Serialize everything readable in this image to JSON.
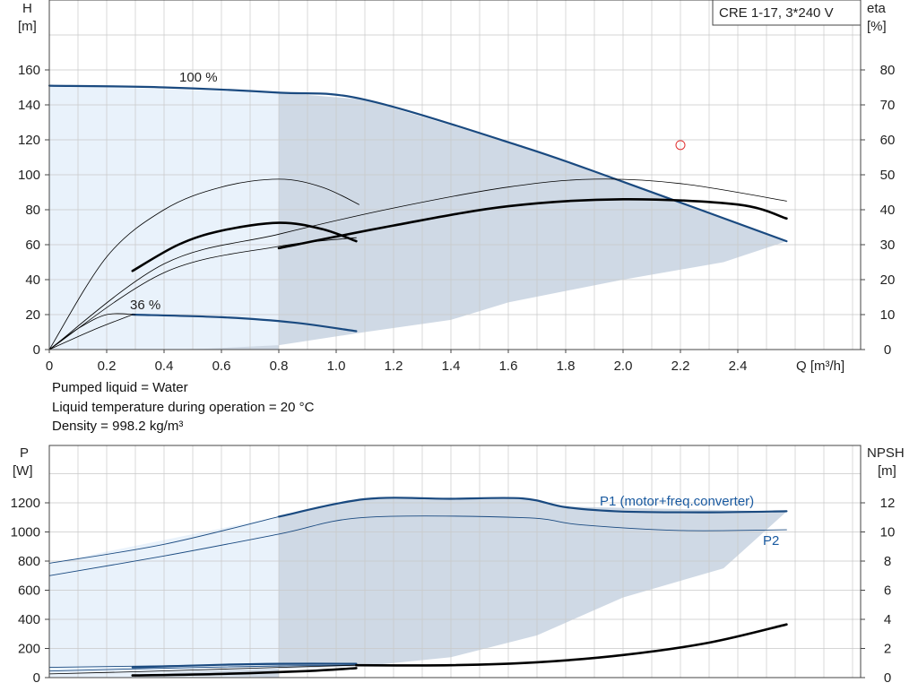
{
  "notes": [
    "Pumped liquid = Water",
    "Liquid temperature during operation = 20 °C",
    "Density = 998.2 kg/m³"
  ],
  "colors": {
    "curve_blue": "#1a4a80",
    "curve_black": "#000000",
    "range_light": "#e9f2fb",
    "range_dark": "#cfd9e5",
    "grid": "#c8c8c8",
    "duty_point": "#e03030",
    "label_blue": "#1a5aa0"
  },
  "chart_data": [
    {
      "type": "line",
      "title": "CRE 1-17, 3*240 V",
      "xlabel": "Q [m³/h]",
      "ylabel_left": [
        "H",
        "[m]"
      ],
      "ylabel_right": [
        "eta",
        "[%]"
      ],
      "xlim": [
        0,
        2.8
      ],
      "ylim_left": [
        0,
        180
      ],
      "ylim_right": [
        0,
        90
      ],
      "x_ticks": [
        "0",
        "0.2",
        "0.4",
        "0.6",
        "0.8",
        "1.0",
        "1.2",
        "1.4",
        "1.6",
        "1.8",
        "2.0",
        "2.2",
        "2.4"
      ],
      "x_tick_values": [
        0,
        0.2,
        0.4,
        0.6,
        0.8,
        1.0,
        1.2,
        1.4,
        1.6,
        1.8,
        2.0,
        2.2,
        2.4
      ],
      "y_ticks_left": [
        "0",
        "20",
        "40",
        "60",
        "80",
        "100",
        "120",
        "140",
        "160"
      ],
      "y_tick_values_left": [
        0,
        20,
        40,
        60,
        80,
        100,
        120,
        140,
        160
      ],
      "y_ticks_right": [
        "0",
        "10",
        "20",
        "30",
        "40",
        "50",
        "60",
        "70",
        "80"
      ],
      "y_tick_values_right": [
        0,
        10,
        20,
        30,
        40,
        50,
        60,
        70,
        80
      ],
      "grid": true,
      "annotations": [
        "100 %",
        "36 %"
      ],
      "regions": {
        "light": [
          [
            0,
            151
          ],
          [
            0.8,
            147
          ],
          [
            0.8,
            0
          ],
          [
            0,
            0
          ]
        ],
        "dark": [
          [
            0.8,
            147
          ],
          [
            1.1,
            143
          ],
          [
            1.65,
            116
          ],
          [
            2.57,
            62
          ],
          [
            2.35,
            50
          ],
          [
            2.0,
            40
          ],
          [
            1.6,
            27
          ],
          [
            1.4,
            17
          ],
          [
            1.1,
            10
          ],
          [
            0.8,
            2.5
          ],
          [
            0.55,
            0.5
          ],
          [
            0.4,
            0
          ],
          [
            0.8,
            0
          ]
        ]
      },
      "series": [
        {
          "name": "100 %",
          "color": "curve_blue",
          "width": 2.2,
          "points": [
            [
              0,
              151
            ],
            [
              0.4,
              150
            ],
            [
              0.8,
              147
            ],
            [
              1.1,
              143
            ],
            [
              1.65,
              116
            ],
            [
              2.0,
              96
            ],
            [
              2.57,
              62
            ]
          ]
        },
        {
          "name": "36 %",
          "color": "curve_blue",
          "width": 2.2,
          "points": [
            [
              0.29,
              20
            ],
            [
              0.6,
              18.5
            ],
            [
              0.85,
              15.5
            ],
            [
              1.07,
              10.5
            ]
          ]
        },
        {
          "name": "",
          "color": "curve_black",
          "width": 2.6,
          "points": [
            [
              0.29,
              45
            ],
            [
              0.45,
              60
            ],
            [
              0.6,
              68
            ],
            [
              0.8,
              72.5
            ],
            [
              0.95,
              69
            ],
            [
              1.07,
              62
            ]
          ]
        },
        {
          "name": "",
          "color": "curve_black",
          "width": 2.6,
          "points": [
            [
              0.8,
              58
            ],
            [
              1.2,
              71
            ],
            [
              1.6,
              82
            ],
            [
              2.0,
              86
            ],
            [
              2.4,
              83
            ],
            [
              2.57,
              75
            ]
          ]
        },
        {
          "name": "",
          "color": "curve_black",
          "width": 0.8,
          "points": [
            [
              0,
              0
            ],
            [
              0.2,
              53
            ],
            [
              0.4,
              80
            ],
            [
              0.6,
              93
            ],
            [
              0.8,
              97.5
            ],
            [
              0.95,
              93
            ],
            [
              1.08,
              83
            ]
          ]
        },
        {
          "name": "",
          "color": "curve_black",
          "width": 0.8,
          "points": [
            [
              0,
              0
            ],
            [
              0.4,
              49
            ],
            [
              0.8,
              66
            ],
            [
              1.2,
              81
            ],
            [
              1.6,
              93
            ],
            [
              1.9,
              97.5
            ],
            [
              2.2,
              95
            ],
            [
              2.57,
              85
            ]
          ]
        },
        {
          "name": "",
          "color": "curve_black",
          "width": 0.8,
          "points": [
            [
              0,
              0
            ],
            [
              0.4,
              44
            ],
            [
              0.8,
              59
            ],
            [
              1.07,
              64
            ]
          ]
        },
        {
          "name": "",
          "color": "curve_black",
          "width": 0.8,
          "points": [
            [
              0,
              0
            ],
            [
              0.1,
              12
            ],
            [
              0.2,
              20
            ],
            [
              0.3,
              20
            ]
          ]
        },
        {
          "name": "",
          "color": "curve_black",
          "width": 0.8,
          "points": [
            [
              0,
              0
            ],
            [
              0.15,
              11
            ],
            [
              0.29,
              20
            ]
          ]
        }
      ],
      "duty_point": [
        2.2,
        117
      ]
    },
    {
      "type": "line",
      "ylabel_left": [
        "P",
        "[W]"
      ],
      "ylabel_right": [
        "NPSH",
        "[m]"
      ],
      "xlim": [
        0,
        2.8
      ],
      "ylim_left": [
        0,
        1500
      ],
      "ylim_right": [
        0,
        15
      ],
      "y_ticks_left": [
        "0",
        "200",
        "400",
        "600",
        "800",
        "1000",
        "1200"
      ],
      "y_tick_values_left": [
        0,
        200,
        400,
        600,
        800,
        1000,
        1200
      ],
      "y_ticks_right": [
        "0",
        "2",
        "4",
        "6",
        "8",
        "10",
        "12"
      ],
      "y_tick_values_right": [
        0,
        2,
        4,
        6,
        8,
        10,
        12
      ],
      "grid": true,
      "regions": {
        "light": [
          [
            0,
            785
          ],
          [
            0.8,
            1105
          ],
          [
            0.8,
            0
          ],
          [
            0,
            0
          ]
        ],
        "dark": [
          [
            0.8,
            1105
          ],
          [
            1.1,
            1225
          ],
          [
            1.65,
            1230
          ],
          [
            1.78,
            1175
          ],
          [
            2.57,
            1140
          ],
          [
            2.35,
            750
          ],
          [
            2.0,
            550
          ],
          [
            1.7,
            290
          ],
          [
            1.4,
            140
          ],
          [
            1.1,
            80
          ],
          [
            0.8,
            60
          ],
          [
            0.5,
            40
          ],
          [
            0.4,
            30
          ],
          [
            0.8,
            0
          ]
        ]
      },
      "series": [
        {
          "name": "P1 (motor+freq.converter)",
          "color": "curve_blue",
          "width": 2.2,
          "points": [
            [
              0.8,
              1105
            ],
            [
              1.1,
              1225
            ],
            [
              1.4,
              1228
            ],
            [
              1.65,
              1230
            ],
            [
              1.8,
              1170
            ],
            [
              2.0,
              1140
            ],
            [
              2.3,
              1135
            ],
            [
              2.57,
              1142
            ]
          ]
        },
        {
          "name": "",
          "color": "curve_blue",
          "width": 0.9,
          "points": [
            [
              0,
              785
            ],
            [
              0.4,
              915
            ],
            [
              0.8,
              1105
            ]
          ]
        },
        {
          "name": "P2",
          "color": "curve_blue",
          "width": 0.9,
          "points": [
            [
              0,
              700
            ],
            [
              0.4,
              835
            ],
            [
              0.8,
              985
            ],
            [
              1.1,
              1100
            ],
            [
              1.65,
              1098
            ],
            [
              1.85,
              1050
            ],
            [
              2.2,
              1010
            ],
            [
              2.57,
              1015
            ]
          ]
        },
        {
          "name": "",
          "color": "curve_blue",
          "width": 2.2,
          "points": [
            [
              0.29,
              70
            ],
            [
              0.6,
              88
            ],
            [
              0.8,
              95
            ],
            [
              1.07,
              95
            ]
          ]
        },
        {
          "name": "",
          "color": "curve_blue",
          "width": 0.9,
          "points": [
            [
              0,
              70
            ],
            [
              0.29,
              78
            ],
            [
              0.8,
              92
            ],
            [
              1.07,
              95
            ]
          ]
        },
        {
          "name": "",
          "color": "curve_blue",
          "width": 0.9,
          "points": [
            [
              0,
              45
            ],
            [
              0.29,
              60
            ],
            [
              0.8,
              80
            ],
            [
              1.07,
              85
            ]
          ]
        },
        {
          "name": "",
          "color": "curve_black",
          "width": 2.6,
          "points": [
            [
              0.29,
              15
            ],
            [
              0.6,
              25
            ],
            [
              0.9,
              45
            ],
            [
              1.07,
              65
            ]
          ]
        },
        {
          "name": "",
          "color": "curve_black",
          "width": 2.6,
          "points": [
            [
              1.07,
              85
            ],
            [
              1.4,
              85
            ],
            [
              1.7,
              105
            ],
            [
              2.0,
              155
            ],
            [
              2.3,
              240
            ],
            [
              2.57,
              365
            ]
          ]
        },
        {
          "name": "",
          "color": "curve_black",
          "width": 0.8,
          "points": [
            [
              0,
              25
            ],
            [
              0.3,
              40
            ],
            [
              0.8,
              70
            ],
            [
              1.07,
              85
            ]
          ]
        }
      ]
    }
  ]
}
